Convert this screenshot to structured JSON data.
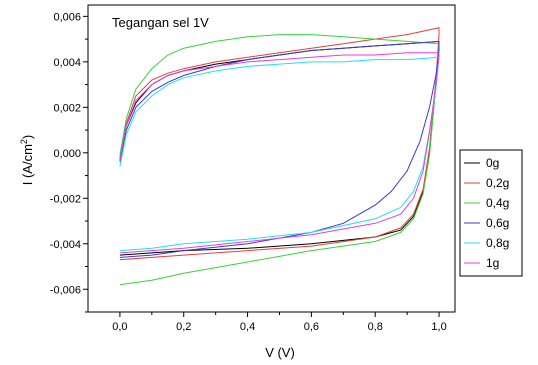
{
  "chart_data": {
    "type": "line",
    "annotation": "Tegangan sel 1V",
    "xlabel": "V (V)",
    "ylabel_main": "I (A/cm",
    "ylabel_sup": "2",
    "ylabel_tail": ")",
    "xlim": [
      -0.1,
      1.05
    ],
    "ylim": [
      -0.007,
      0.0065
    ],
    "x_ticks": [
      0.0,
      0.2,
      0.4,
      0.6,
      0.8,
      1.0
    ],
    "x_tick_labels": [
      "0,0",
      "0,2",
      "0,4",
      "0,6",
      "0,8",
      "1,0"
    ],
    "y_ticks": [
      -0.006,
      -0.004,
      -0.002,
      0.0,
      0.002,
      0.004,
      0.006
    ],
    "y_tick_labels": [
      "-0,006",
      "-0,004",
      "-0,002",
      "0,000",
      "0,002",
      "0,004",
      "0,006"
    ],
    "grid": false,
    "legend_position": "right",
    "series": [
      {
        "name": "0g",
        "color": "#000000",
        "upper": [
          [
            0.0,
            -0.0003
          ],
          [
            0.02,
            0.0012
          ],
          [
            0.05,
            0.0022
          ],
          [
            0.1,
            0.003
          ],
          [
            0.15,
            0.0034
          ],
          [
            0.2,
            0.0036
          ],
          [
            0.3,
            0.0039
          ],
          [
            0.4,
            0.0041
          ],
          [
            0.5,
            0.0043
          ],
          [
            0.6,
            0.0045
          ],
          [
            0.7,
            0.0046
          ],
          [
            0.8,
            0.0047
          ],
          [
            0.9,
            0.0048
          ],
          [
            1.0,
            0.0049
          ]
        ],
        "lower": [
          [
            1.0,
            0.0046
          ],
          [
            0.99,
            0.003
          ],
          [
            0.97,
            0.0
          ],
          [
            0.95,
            -0.0017
          ],
          [
            0.92,
            -0.0028
          ],
          [
            0.88,
            -0.0034
          ],
          [
            0.8,
            -0.0037
          ],
          [
            0.6,
            -0.004
          ],
          [
            0.4,
            -0.0042
          ],
          [
            0.2,
            -0.0043
          ],
          [
            0.1,
            -0.0044
          ],
          [
            0.0,
            -0.0045
          ]
        ]
      },
      {
        "name": "0,2g",
        "color": "#e0403a",
        "upper": [
          [
            0.0,
            -0.0002
          ],
          [
            0.02,
            0.0013
          ],
          [
            0.05,
            0.0025
          ],
          [
            0.1,
            0.0032
          ],
          [
            0.15,
            0.0035
          ],
          [
            0.2,
            0.0037
          ],
          [
            0.3,
            0.004
          ],
          [
            0.4,
            0.0042
          ],
          [
            0.5,
            0.0044
          ],
          [
            0.6,
            0.0046
          ],
          [
            0.7,
            0.0048
          ],
          [
            0.8,
            0.005
          ],
          [
            0.9,
            0.0052
          ],
          [
            1.0,
            0.0055
          ]
        ],
        "lower": [
          [
            1.0,
            0.0052
          ],
          [
            0.99,
            0.0032
          ],
          [
            0.97,
            0.0002
          ],
          [
            0.95,
            -0.0016
          ],
          [
            0.92,
            -0.0027
          ],
          [
            0.88,
            -0.0033
          ],
          [
            0.8,
            -0.0037
          ],
          [
            0.6,
            -0.0041
          ],
          [
            0.4,
            -0.0043
          ],
          [
            0.2,
            -0.0045
          ],
          [
            0.1,
            -0.0046
          ],
          [
            0.0,
            -0.0047
          ]
        ]
      },
      {
        "name": "0,4g",
        "color": "#39d23a",
        "upper": [
          [
            0.0,
            -0.0001
          ],
          [
            0.02,
            0.0015
          ],
          [
            0.05,
            0.0028
          ],
          [
            0.1,
            0.0037
          ],
          [
            0.15,
            0.0043
          ],
          [
            0.2,
            0.0046
          ],
          [
            0.3,
            0.0049
          ],
          [
            0.4,
            0.0051
          ],
          [
            0.5,
            0.0052
          ],
          [
            0.6,
            0.0052
          ],
          [
            0.7,
            0.0051
          ],
          [
            0.8,
            0.005
          ],
          [
            0.9,
            0.0049
          ],
          [
            1.0,
            0.0048
          ]
        ],
        "lower": [
          [
            1.0,
            0.0049
          ],
          [
            0.99,
            0.003
          ],
          [
            0.97,
            -0.0001
          ],
          [
            0.95,
            -0.0018
          ],
          [
            0.92,
            -0.0029
          ],
          [
            0.88,
            -0.0035
          ],
          [
            0.8,
            -0.0039
          ],
          [
            0.6,
            -0.0043
          ],
          [
            0.4,
            -0.0048
          ],
          [
            0.2,
            -0.0053
          ],
          [
            0.1,
            -0.0056
          ],
          [
            0.0,
            -0.0058
          ]
        ]
      },
      {
        "name": "0,6g",
        "color": "#3a3ad0",
        "upper": [
          [
            0.0,
            -0.0004
          ],
          [
            0.02,
            0.001
          ],
          [
            0.05,
            0.002
          ],
          [
            0.1,
            0.0027
          ],
          [
            0.15,
            0.0031
          ],
          [
            0.2,
            0.0034
          ],
          [
            0.3,
            0.0038
          ],
          [
            0.4,
            0.0041
          ],
          [
            0.5,
            0.0043
          ],
          [
            0.6,
            0.0045
          ],
          [
            0.7,
            0.0046
          ],
          [
            0.8,
            0.0047
          ],
          [
            0.9,
            0.0048
          ],
          [
            1.0,
            0.0049
          ]
        ],
        "lower": [
          [
            1.0,
            0.0045
          ],
          [
            0.99,
            0.0034
          ],
          [
            0.97,
            0.002
          ],
          [
            0.94,
            0.0005
          ],
          [
            0.9,
            -0.0008
          ],
          [
            0.85,
            -0.0017
          ],
          [
            0.8,
            -0.0023
          ],
          [
            0.7,
            -0.0031
          ],
          [
            0.6,
            -0.0035
          ],
          [
            0.4,
            -0.004
          ],
          [
            0.2,
            -0.0043
          ],
          [
            0.1,
            -0.0045
          ],
          [
            0.0,
            -0.0046
          ]
        ]
      },
      {
        "name": "0,8g",
        "color": "#22e0ee",
        "upper": [
          [
            0.0,
            -0.0006
          ],
          [
            0.02,
            0.0008
          ],
          [
            0.05,
            0.0018
          ],
          [
            0.1,
            0.0025
          ],
          [
            0.15,
            0.003
          ],
          [
            0.2,
            0.0033
          ],
          [
            0.3,
            0.0036
          ],
          [
            0.4,
            0.0038
          ],
          [
            0.5,
            0.0039
          ],
          [
            0.6,
            0.004
          ],
          [
            0.7,
            0.004
          ],
          [
            0.8,
            0.0041
          ],
          [
            0.9,
            0.0041
          ],
          [
            1.0,
            0.0042
          ]
        ],
        "lower": [
          [
            1.0,
            0.0042
          ],
          [
            0.99,
            0.0028
          ],
          [
            0.97,
            0.001
          ],
          [
            0.95,
            -0.0006
          ],
          [
            0.92,
            -0.0017
          ],
          [
            0.88,
            -0.0024
          ],
          [
            0.8,
            -0.0029
          ],
          [
            0.6,
            -0.0035
          ],
          [
            0.4,
            -0.0038
          ],
          [
            0.2,
            -0.004
          ],
          [
            0.1,
            -0.0042
          ],
          [
            0.0,
            -0.0043
          ]
        ]
      },
      {
        "name": "1g",
        "color": "#e040e0",
        "upper": [
          [
            0.0,
            -0.0003
          ],
          [
            0.02,
            0.0012
          ],
          [
            0.05,
            0.0023
          ],
          [
            0.1,
            0.003
          ],
          [
            0.15,
            0.0034
          ],
          [
            0.2,
            0.0036
          ],
          [
            0.3,
            0.0038
          ],
          [
            0.4,
            0.004
          ],
          [
            0.5,
            0.0041
          ],
          [
            0.6,
            0.0042
          ],
          [
            0.7,
            0.0043
          ],
          [
            0.8,
            0.0043
          ],
          [
            0.9,
            0.0044
          ],
          [
            1.0,
            0.0044
          ]
        ],
        "lower": [
          [
            1.0,
            0.0043
          ],
          [
            0.99,
            0.003
          ],
          [
            0.97,
            0.0009
          ],
          [
            0.95,
            -0.0008
          ],
          [
            0.92,
            -0.002
          ],
          [
            0.88,
            -0.0027
          ],
          [
            0.8,
            -0.0031
          ],
          [
            0.6,
            -0.0036
          ],
          [
            0.4,
            -0.0039
          ],
          [
            0.2,
            -0.0042
          ],
          [
            0.1,
            -0.0043
          ],
          [
            0.0,
            -0.0044
          ]
        ]
      }
    ]
  }
}
